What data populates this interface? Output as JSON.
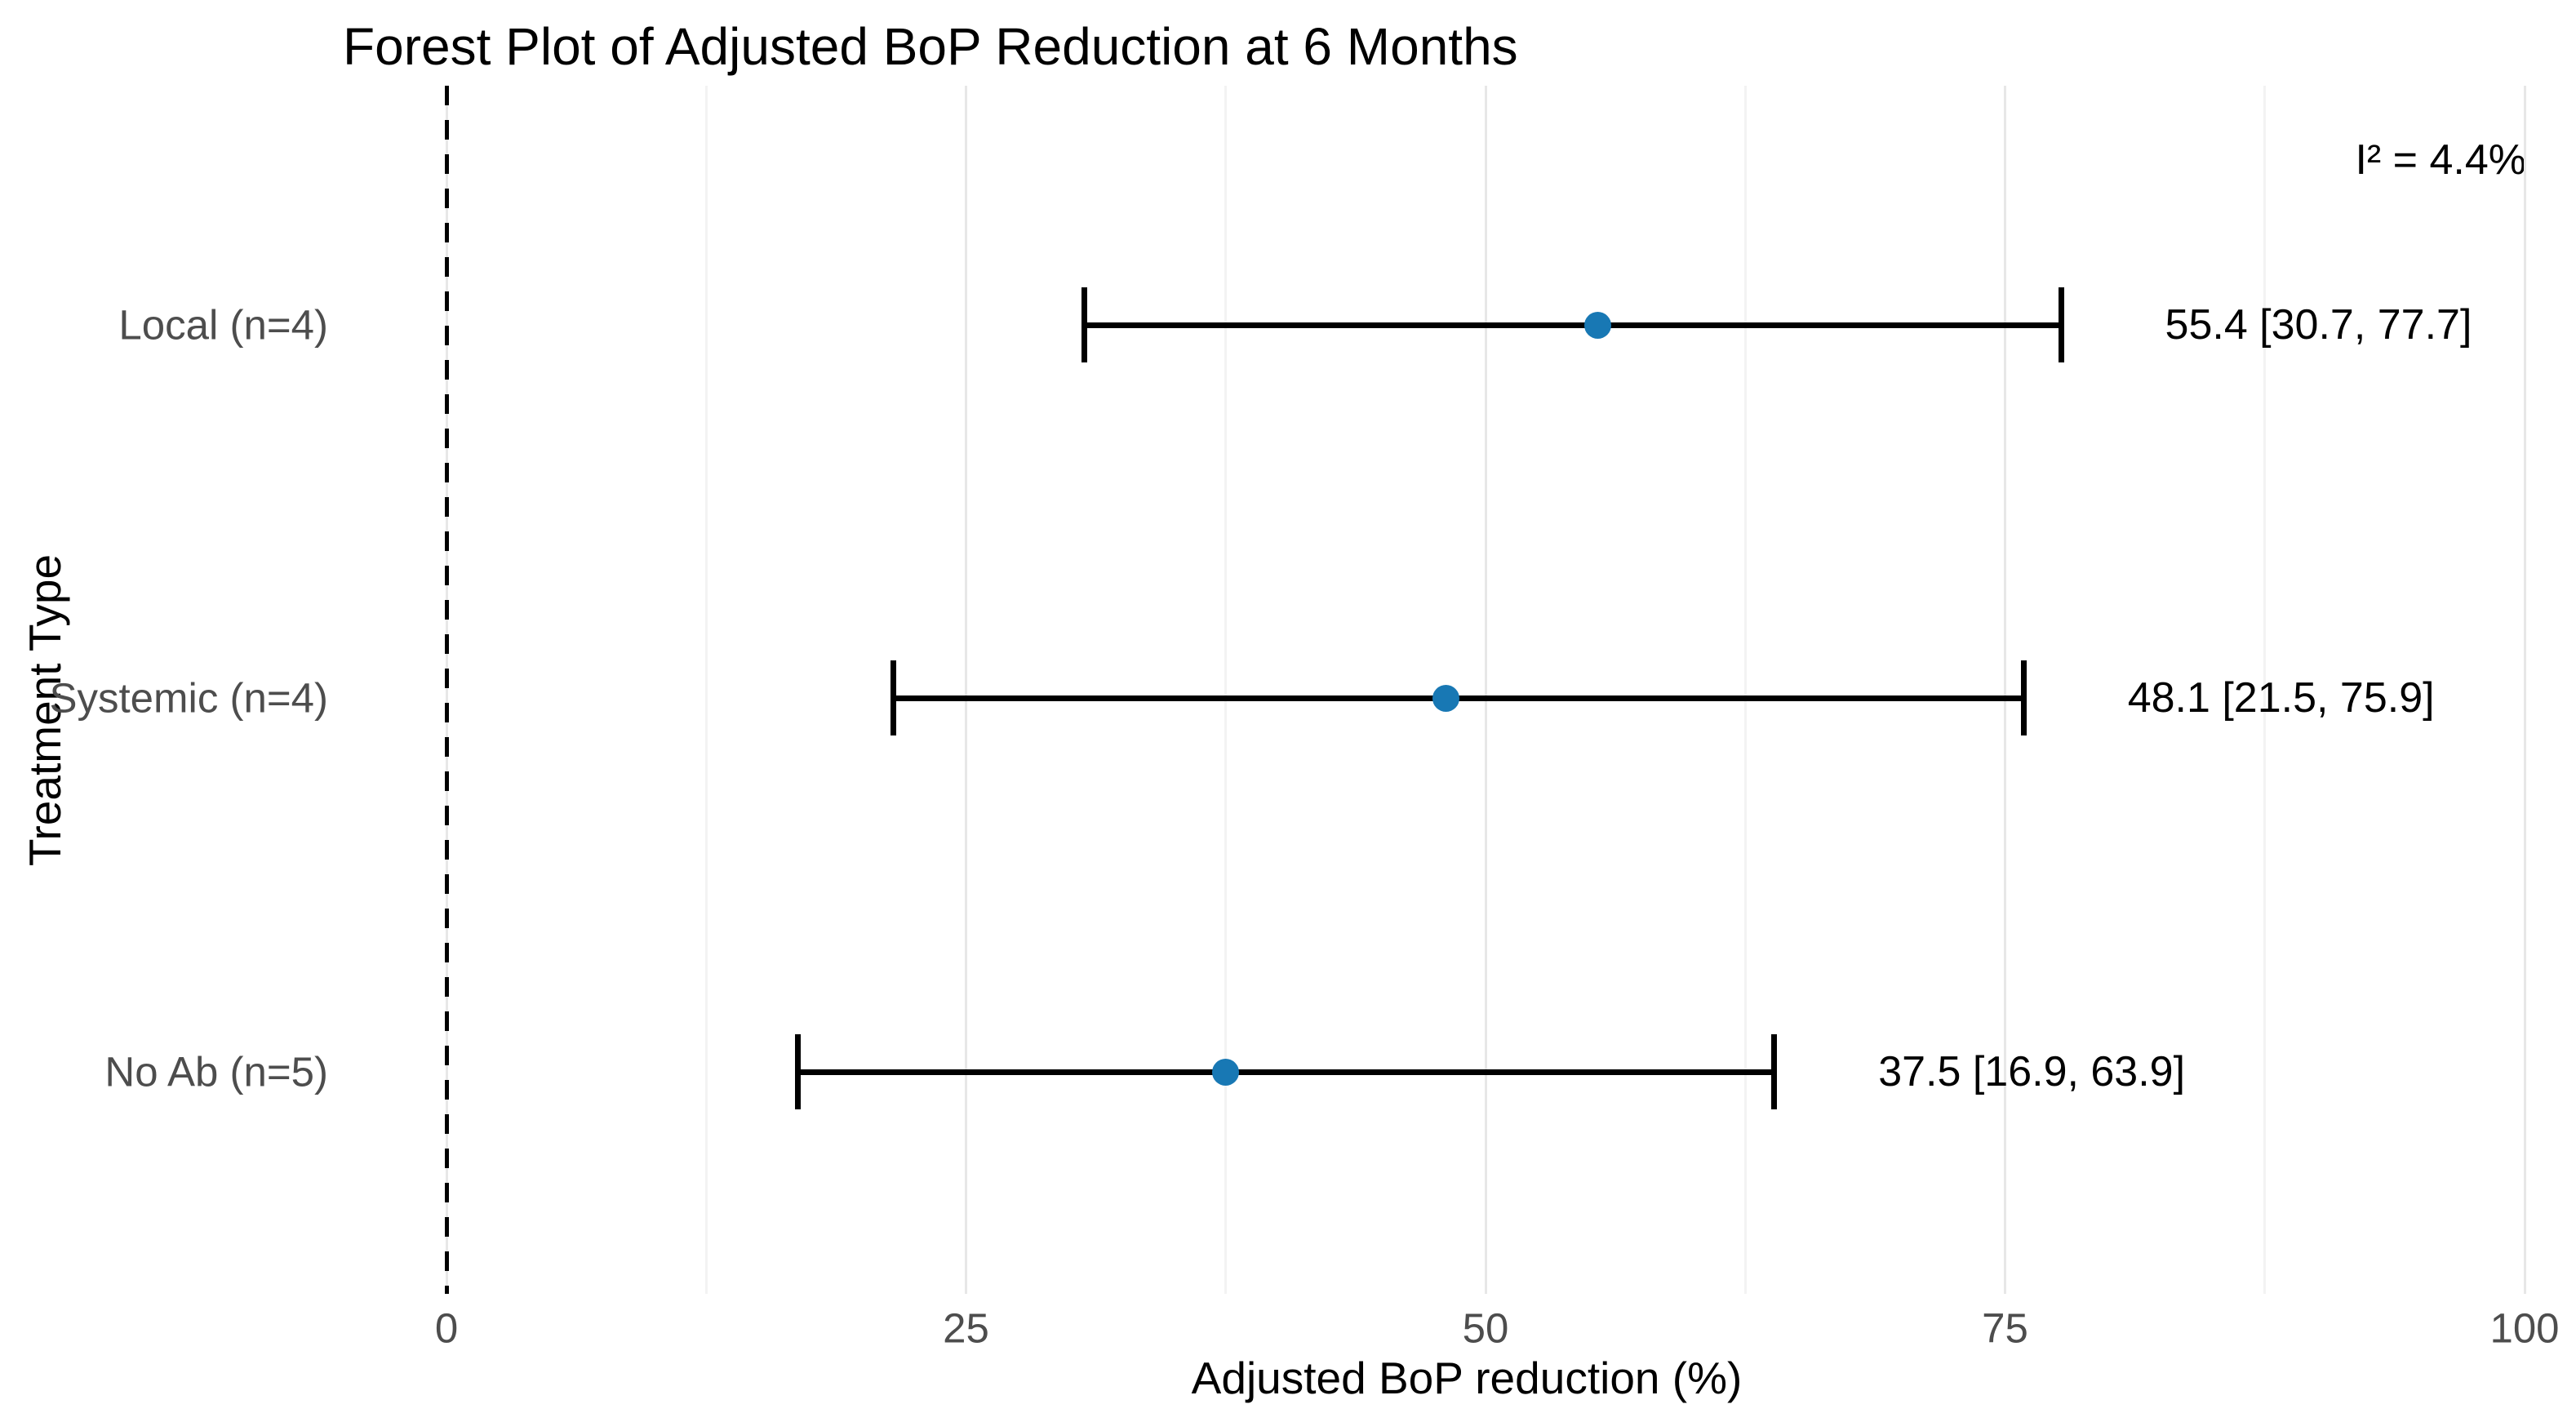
{
  "chart_data": {
    "type": "scatter",
    "subtype": "forest-plot",
    "title": "Forest Plot of Adjusted BoP Reduction at 6 Months",
    "xlabel": "Adjusted BoP reduction (%)",
    "ylabel": "Treatment Type",
    "annotation": "I² = 4.4%",
    "x_axis": {
      "min": 0,
      "max": 100,
      "ticks": [
        0,
        25,
        50,
        75,
        100
      ],
      "tick_labels": [
        "0",
        "25",
        "50",
        "75",
        "100"
      ],
      "minor_ticks": [
        12.5,
        37.5,
        62.5,
        87.5
      ]
    },
    "reference_line_x": 0,
    "rows": [
      {
        "label": "Local (n=4)",
        "estimate": 55.4,
        "ci_lower": 30.7,
        "ci_upper": 77.7,
        "value_text": "55.4 [30.7, 77.7]"
      },
      {
        "label": "Systemic (n=4)",
        "estimate": 48.1,
        "ci_lower": 21.5,
        "ci_upper": 75.9,
        "value_text": "48.1 [21.5, 75.9]"
      },
      {
        "label": "No Ab (n=5)",
        "estimate": 37.5,
        "ci_lower": 16.9,
        "ci_upper": 63.9,
        "value_text": "37.5 [16.9, 63.9]"
      }
    ],
    "legend": "none",
    "grid": {
      "vertical_major": true,
      "vertical_minor": true,
      "horizontal": false
    },
    "colors": {
      "point": "#1878b4",
      "ci_line": "#000000",
      "reference_line": "#000000",
      "grid_major": "#e7e7e7",
      "grid_minor": "#f3f3f3",
      "axis_text": "#4d4d4d",
      "text": "#000000",
      "background": "#ffffff"
    }
  }
}
